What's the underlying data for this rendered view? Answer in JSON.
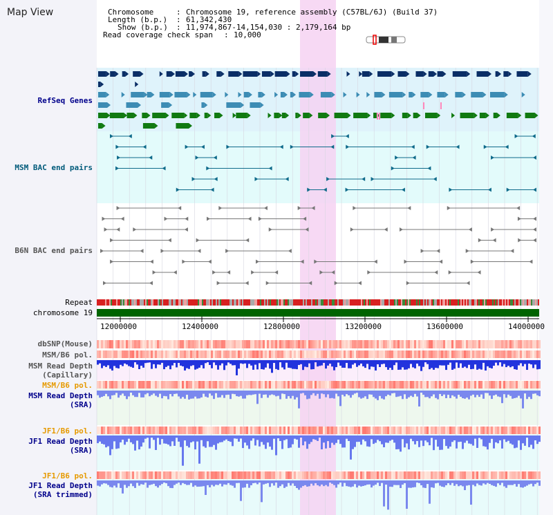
{
  "title": "Map View",
  "info": {
    "chromosome_label": "Chromosome",
    "chromosome_value": "Chromosome 19, reference assembly (C57BL/6J) (Build 37)",
    "length_label": "Length (b.p.)",
    "length_value": "61,342,430",
    "show_label": "Show (b.p.)",
    "show_value": "11,974,867-14,154,030 : 2,179,164 bp",
    "coverage_label": "Read coverage check span",
    "coverage_value": "10,000"
  },
  "tracks": {
    "refseq": "RefSeq Genes",
    "msm_bac": "MSM BAC end pairs",
    "b6n_bac": "B6N BAC end pairs",
    "repeat": "Repeat",
    "chromosome": "chromosome 19",
    "dbsnp": "dbSNP(Mouse)",
    "msm_b6_pol_1": "MSM/B6 pol.",
    "msm_depth_cap_1": "MSM Read Depth",
    "msm_depth_cap_2": "(Capillary)",
    "msm_b6_pol_2": "MSM/B6 pol.",
    "msm_depth_sra_1": "MSM Read Depth",
    "msm_depth_sra_2": "(SRA)",
    "jf1_b6_pol_1": "JF1/B6 pol.",
    "jf1_depth_sra_1": "JF1 Read Depth",
    "jf1_depth_sra_2": "(SRA)",
    "jf1_b6_pol_2": "JF1/B6 pol.",
    "jf1_depth_trim_1": "JF1 Read Depth",
    "jf1_depth_trim_2": "(SRA trimmed)"
  },
  "axis": {
    "ticks": [
      "12000000",
      "12400000",
      "12800000",
      "13200000",
      "13600000",
      "14000000"
    ]
  },
  "colors": {
    "refseq_bg": "#dff3fb",
    "msm_bac_bg": "#e3fbfb",
    "highlight": "#f6d2f2",
    "chromosome_bar": "#006400",
    "label_blue": "#00008b",
    "label_teal": "#005a7a",
    "label_orange": "#e69a00",
    "label_gray": "#555555"
  }
}
